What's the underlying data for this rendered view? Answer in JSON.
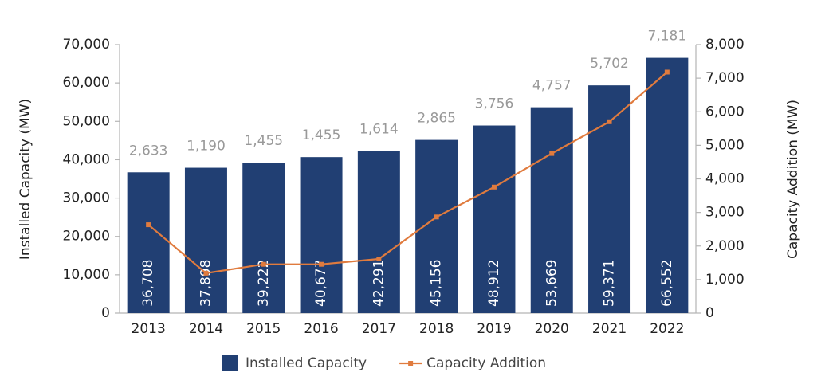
{
  "chart_data": {
    "type": "bar-line",
    "categories": [
      "2013",
      "2014",
      "2015",
      "2016",
      "2017",
      "2018",
      "2019",
      "2020",
      "2021",
      "2022"
    ],
    "y_label": "Installed Capacity (MW)",
    "y2_label": "Capacity Addition (MW)",
    "series": [
      {
        "name": "Installed Capacity",
        "type": "bar",
        "color": "#213f73",
        "values": [
          36708,
          37898,
          39222,
          40677,
          42291,
          45156,
          48912,
          53669,
          59371,
          66552
        ],
        "value_labels": [
          "36,708",
          "37,898",
          "39,222",
          "40,677",
          "42,291",
          "45,156",
          "48,912",
          "53,669",
          "59,371",
          "66,552"
        ]
      },
      {
        "name": "Capacity Addition",
        "type": "line",
        "axis": "y2",
        "color": "#e07b3e",
        "values": [
          2633,
          1190,
          1455,
          1455,
          1614,
          2865,
          3756,
          4757,
          5702,
          7181
        ],
        "value_labels": [
          "2,633",
          "1,190",
          "1,455",
          "1,455",
          "1,614",
          "2,865",
          "3,756",
          "4,757",
          "5,702",
          "7,181"
        ]
      }
    ],
    "ylim": [
      0,
      70000
    ],
    "yticks": [
      0,
      {
        "value": 10000,
        "label": "10,000"
      },
      {
        "value": 20000,
        "label": "20,000"
      },
      {
        "value": 30000,
        "label": "30,000"
      },
      {
        "value": 40000,
        "label": "40,000"
      },
      {
        "value": 50000,
        "label": "50,000"
      },
      {
        "value": 60000,
        "label": "60,000"
      },
      {
        "value": 70000,
        "label": "70,000"
      }
    ],
    "y2lim": [
      0,
      8000
    ],
    "y2ticks": [
      0,
      {
        "value": 1000,
        "label": "1,000"
      },
      {
        "value": 2000,
        "label": "2,000"
      },
      {
        "value": 3000,
        "label": "3,000"
      },
      {
        "value": 4000,
        "label": "4,000"
      },
      {
        "value": 5000,
        "label": "5,000"
      },
      {
        "value": 6000,
        "label": "6,000"
      },
      {
        "value": 7000,
        "label": "7,000"
      },
      {
        "value": 8000,
        "label": "8,000"
      }
    ],
    "legend": "bottom"
  }
}
